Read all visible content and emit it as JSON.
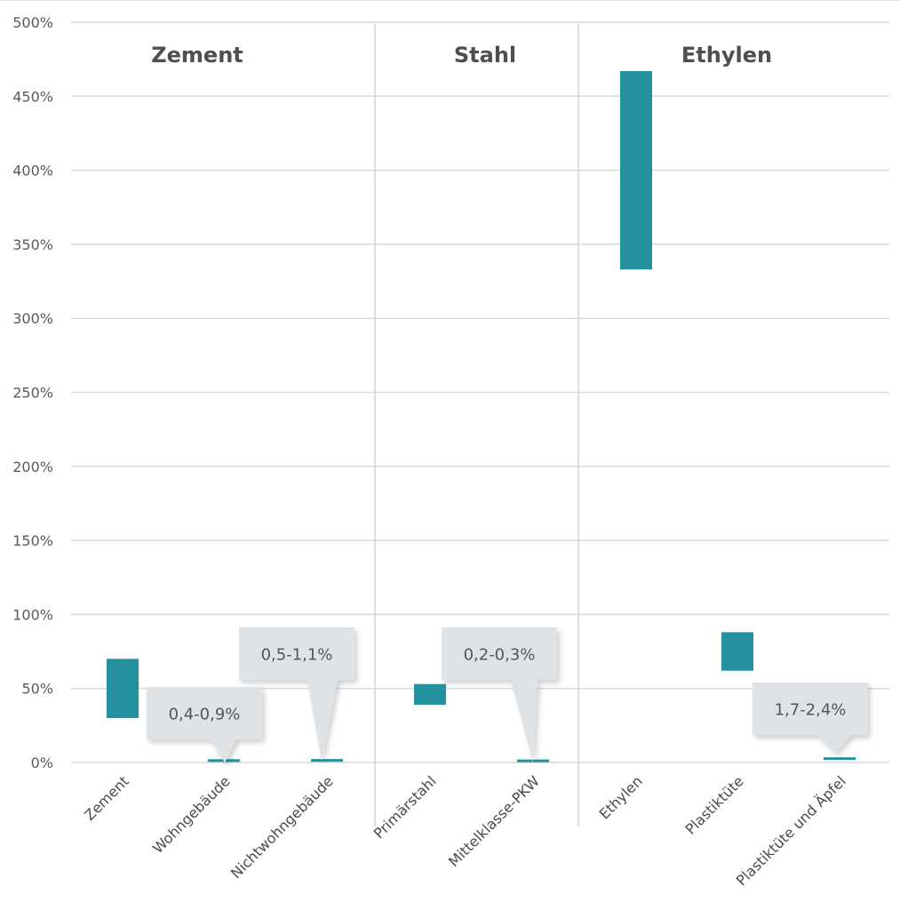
{
  "chart_data": {
    "type": "bar",
    "subtype": "floating-range",
    "ylim": [
      0,
      500
    ],
    "yticks": [
      0,
      50,
      100,
      150,
      200,
      250,
      300,
      350,
      400,
      450,
      500
    ],
    "ytick_labels": [
      "0%",
      "50%",
      "100%",
      "150%",
      "200%",
      "250%",
      "300%",
      "350%",
      "400%",
      "450%",
      "500%"
    ],
    "grid": true,
    "bar_color": "#23919e",
    "callout_color": "#e0e3e6",
    "groups": [
      {
        "title": "Zement",
        "start": 0,
        "end": 2
      },
      {
        "title": "Stahl",
        "start": 3,
        "end": 4
      },
      {
        "title": "Ethylen",
        "start": 5,
        "end": 7
      }
    ],
    "categories": [
      "Zement",
      "Wohngebäude",
      "Nichtwohngebäude",
      "Primärstahl",
      "Mittelklasse-PKW",
      "Ethylen",
      "Plastiktüte",
      "Plastiktüte und Äpfel"
    ],
    "ranges": [
      [
        30,
        70
      ],
      [
        0.4,
        0.9
      ],
      [
        0.5,
        1.1
      ],
      [
        39,
        53
      ],
      [
        0.2,
        0.3
      ],
      [
        333,
        467
      ],
      [
        62,
        88
      ],
      [
        1.7,
        2.4
      ]
    ],
    "callouts": [
      {
        "category_index": 1,
        "text": "0,4-0,9%"
      },
      {
        "category_index": 2,
        "text": "0,5-1,1%"
      },
      {
        "category_index": 4,
        "text": "0,2-0,3%"
      },
      {
        "category_index": 7,
        "text": "1,7-2,4%"
      }
    ]
  }
}
